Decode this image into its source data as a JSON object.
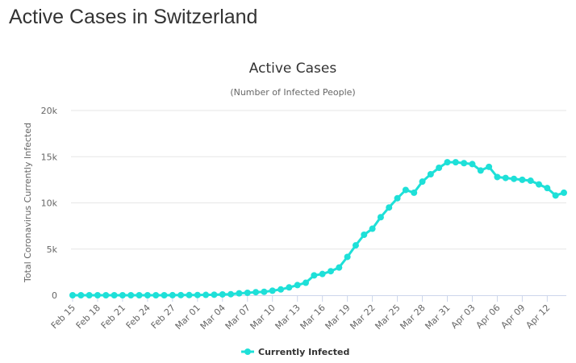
{
  "page": {
    "title": "Active Cases in Switzerland"
  },
  "colors": {
    "series": "#1ee0d8",
    "grid": "#e6e6e6",
    "axis_line": "#ccd6eb"
  },
  "chart_data": {
    "type": "line",
    "title": "Active Cases",
    "subtitle": "(Number of Infected People)",
    "ylabel": "Total Coronavirus Currently Infected",
    "xlabel": "",
    "ylim": [
      0,
      20000
    ],
    "yticks": [
      0,
      5000,
      10000,
      15000,
      20000
    ],
    "ytick_labels": [
      "0",
      "5k",
      "10k",
      "15k",
      "20k"
    ],
    "grid": true,
    "legend_position": "bottom-center",
    "x_tick_labels": [
      "Feb 15",
      "Feb 18",
      "Feb 21",
      "Feb 24",
      "Feb 27",
      "Mar 01",
      "Mar 04",
      "Mar 07",
      "Mar 10",
      "Mar 13",
      "Mar 16",
      "Mar 19",
      "Mar 22",
      "Mar 25",
      "Mar 28",
      "Mar 31",
      "Apr 03",
      "Apr 06",
      "Apr 09",
      "Apr 12"
    ],
    "x": [
      "Feb 15",
      "Feb 16",
      "Feb 17",
      "Feb 18",
      "Feb 19",
      "Feb 20",
      "Feb 21",
      "Feb 22",
      "Feb 23",
      "Feb 24",
      "Feb 25",
      "Feb 26",
      "Feb 27",
      "Feb 28",
      "Feb 29",
      "Mar 01",
      "Mar 02",
      "Mar 03",
      "Mar 04",
      "Mar 05",
      "Mar 06",
      "Mar 07",
      "Mar 08",
      "Mar 09",
      "Mar 10",
      "Mar 11",
      "Mar 12",
      "Mar 13",
      "Mar 14",
      "Mar 15",
      "Mar 16",
      "Mar 17",
      "Mar 18",
      "Mar 19",
      "Mar 20",
      "Mar 21",
      "Mar 22",
      "Mar 23",
      "Mar 24",
      "Mar 25",
      "Mar 26",
      "Mar 27",
      "Mar 28",
      "Mar 29",
      "Mar 30",
      "Mar 31",
      "Apr 01",
      "Apr 02",
      "Apr 03",
      "Apr 04",
      "Apr 05",
      "Apr 06",
      "Apr 07",
      "Apr 08",
      "Apr 09",
      "Apr 10",
      "Apr 11",
      "Apr 12",
      "Apr 13",
      "Apr 14"
    ],
    "series": [
      {
        "name": "Currently Infected",
        "values": [
          0,
          0,
          0,
          0,
          0,
          0,
          0,
          0,
          0,
          0,
          0,
          1,
          8,
          15,
          18,
          27,
          42,
          56,
          90,
          113,
          207,
          264,
          330,
          370,
          490,
          630,
          850,
          1100,
          1350,
          2150,
          2300,
          2600,
          3000,
          4150,
          5400,
          6550,
          7200,
          8450,
          9500,
          10500,
          11400,
          11100,
          12300,
          13100,
          13800,
          14400,
          14400,
          14300,
          14200,
          13500,
          13900,
          12800,
          12700,
          12600,
          12500,
          12400,
          12000,
          11600,
          10800,
          11100
        ]
      }
    ]
  }
}
